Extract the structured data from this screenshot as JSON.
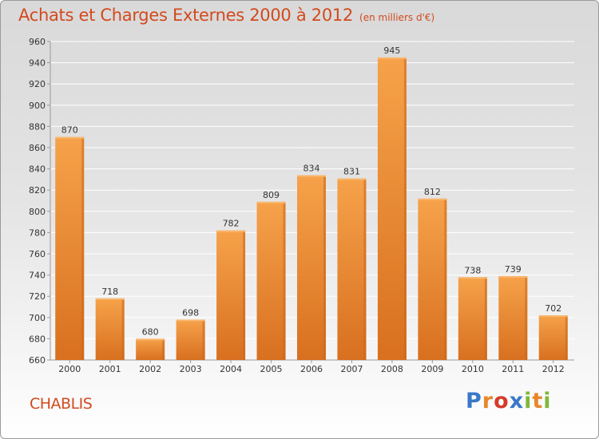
{
  "header": {
    "title": "Achats et Charges Externes 2000 à 2012",
    "unit": "(en milliers d'€)"
  },
  "footer": {
    "commune": "CHABLIS",
    "logo": "Proxiti"
  },
  "colors": {
    "title": "#d24a1e",
    "bar_light": "#f6a24a",
    "bar_dark": "#d8701f",
    "grid": "#ffffff"
  },
  "chart_data": {
    "type": "bar",
    "title": "Achats et Charges Externes 2000 à 2012",
    "subtitle": "(en milliers d'€)",
    "xlabel": "",
    "ylabel": "",
    "categories": [
      "2000",
      "2001",
      "2002",
      "2003",
      "2004",
      "2005",
      "2006",
      "2007",
      "2008",
      "2009",
      "2010",
      "2011",
      "2012"
    ],
    "values": [
      870,
      718,
      680,
      698,
      782,
      809,
      834,
      831,
      945,
      812,
      738,
      739,
      702
    ],
    "ylim": [
      660,
      960
    ],
    "yticks": [
      660,
      680,
      700,
      720,
      740,
      760,
      780,
      800,
      820,
      840,
      860,
      880,
      900,
      920,
      940,
      960
    ],
    "grid": true,
    "data_labels": true
  }
}
